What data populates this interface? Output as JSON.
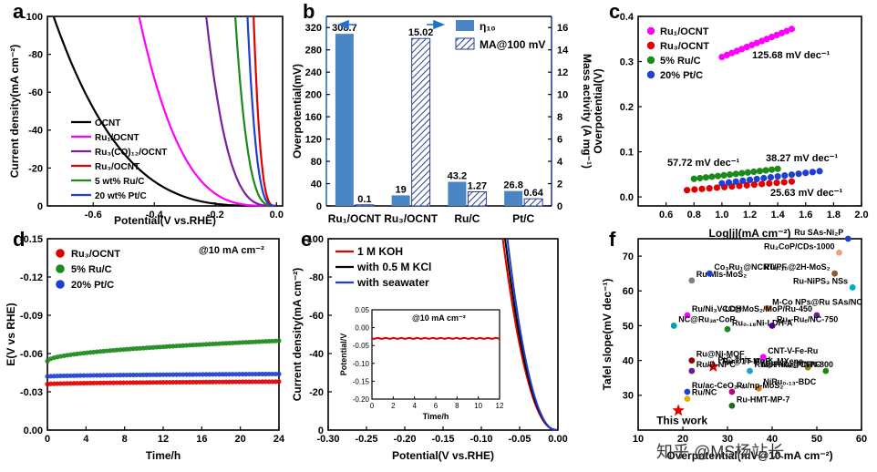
{
  "panels": {
    "a": {
      "letter": "a",
      "chart_data": {
        "type": "line",
        "xlabel": "Potential(V vs.RHE)",
        "ylabel": "Current density(mA cm⁻²)",
        "xlim": [
          -0.75,
          0.02
        ],
        "ylim": [
          -100,
          0
        ],
        "xticks": [
          -0.6,
          -0.4,
          -0.2,
          0.0
        ],
        "yticks": [
          0,
          -20,
          -40,
          -60,
          -80,
          -100
        ],
        "xtick_labels": [
          "-0.6",
          "-0.4",
          "-0.2",
          "0.0"
        ],
        "ytick_labels": [
          "0",
          "-20",
          "-40",
          "-60",
          "-80",
          "-100"
        ],
        "series": [
          {
            "name": "OCNT",
            "color": "#000000",
            "onset": -0.02,
            "end": -0.73
          },
          {
            "name": "Ru₁/OCNT",
            "color": "#ff00ff",
            "onset": -0.01,
            "end": -0.45
          },
          {
            "name": "Ru₃(CO)₁₂/OCNT",
            "color": "#7b1fa2",
            "onset": -0.005,
            "end": -0.23
          },
          {
            "name": "Ru₃/OCNT",
            "color": "#e00000",
            "onset": -0.002,
            "end": -0.075
          },
          {
            "name": "5 wt% Ru/C",
            "color": "#1a8a1a",
            "onset": -0.004,
            "end": -0.135
          },
          {
            "name": "20 wt% Pt/C",
            "color": "#1f3fd0",
            "onset": -0.003,
            "end": -0.095
          }
        ]
      }
    },
    "b": {
      "letter": "b",
      "chart_data": {
        "type": "bar",
        "categories": [
          "Ru₁/OCNT",
          "Ru₃/OCNT",
          "Ru/C",
          "Pt/C"
        ],
        "ylabel": "Overpotential(mV)",
        "ylabel2": "Mass activity (A mg⁻¹)",
        "ylim": [
          0,
          340
        ],
        "ylim2": [
          0,
          17
        ],
        "yticks": [
          0,
          40,
          80,
          120,
          160,
          200,
          240,
          280,
          320
        ],
        "yticks2": [
          0,
          2,
          4,
          6,
          8,
          10,
          12,
          14,
          16
        ],
        "series": [
          {
            "name": "η₁₀",
            "axis": "left",
            "color": "#4a86c5",
            "values": [
              308.7,
              19,
              43.2,
              26.8
            ],
            "labels": [
              "308.7",
              "19",
              "43.2",
              "26.8"
            ]
          },
          {
            "name": "MA@100 mV",
            "axis": "right",
            "color": "#2a3f8f",
            "values": [
              0.1,
              15.02,
              1.27,
              0.64
            ],
            "labels": [
              "0.1",
              "15.02",
              "1.27",
              "0.64"
            ]
          }
        ]
      }
    },
    "c": {
      "letter": "c",
      "chart_data": {
        "type": "scatter",
        "xlabel": "Log|j|(mA cm⁻²)",
        "ylabel": "Overpotential(V)",
        "xlim": [
          0.4,
          2.0
        ],
        "ylim": [
          -0.02,
          0.4
        ],
        "xticks": [
          0.6,
          0.8,
          1.0,
          1.2,
          1.4,
          1.6,
          1.8,
          2.0
        ],
        "yticks": [
          0.0,
          0.1,
          0.2,
          0.3,
          0.4
        ],
        "series": [
          {
            "name": "Ru₁/OCNT",
            "color": "#ff00ff",
            "x": [
              1.0,
              1.5
            ],
            "y": [
              0.31,
              0.372
            ],
            "slope": "125.68 mV dec⁻¹"
          },
          {
            "name": "Ru₃/OCNT",
            "color": "#e00000",
            "x": [
              0.75,
              1.5
            ],
            "y": [
              0.015,
              0.034
            ],
            "slope": "25.63 mV dec⁻¹"
          },
          {
            "name": "5% Ru/C",
            "color": "#1a8a1a",
            "x": [
              0.8,
              1.4
            ],
            "y": [
              0.04,
              0.062
            ],
            "slope": "57.72 mV dec⁻¹"
          },
          {
            "name": "20% Pt/C",
            "color": "#1f3fd0",
            "x": [
              1.0,
              1.7
            ],
            "y": [
              0.03,
              0.057
            ],
            "slope": "38.27 mV dec⁻¹"
          }
        ]
      }
    },
    "d": {
      "letter": "d",
      "annotation": "@10 mA cm⁻²",
      "chart_data": {
        "type": "scatter",
        "xlabel": "Time/h",
        "ylabel": "E(V vs RHE)",
        "xlim": [
          0,
          24
        ],
        "ylim": [
          -0.15,
          0.0
        ],
        "xticks": [
          0,
          4,
          8,
          12,
          16,
          20,
          24
        ],
        "yticks": [
          0.0,
          -0.03,
          -0.06,
          -0.09,
          -0.12,
          -0.15
        ],
        "ytick_labels": [
          "0.00",
          "-0.03",
          "-0.06",
          "-0.09",
          "-0.12",
          "-0.15"
        ],
        "series": [
          {
            "name": "Ru₃/OCNT",
            "color": "#e00000",
            "start": -0.036,
            "end": -0.038
          },
          {
            "name": "5% Ru/C",
            "color": "#1a8a1a",
            "start": -0.054,
            "end": -0.07
          },
          {
            "name": "20% Pt/C",
            "color": "#1f3fd0",
            "start": -0.042,
            "end": -0.044
          }
        ]
      }
    },
    "e": {
      "letter": "e",
      "chart_data": {
        "type": "line",
        "xlabel": "Potential(V vs.RHE)",
        "ylabel": "Current density(mA cm⁻²)",
        "xlim": [
          -0.3,
          0.0
        ],
        "ylim": [
          -100,
          0
        ],
        "xticks": [
          -0.3,
          -0.25,
          -0.2,
          -0.15,
          -0.1,
          -0.05,
          0.0
        ],
        "xtick_labels": [
          "-0.30",
          "-0.25",
          "-0.20",
          "-0.15",
          "-0.10",
          "-0.05",
          "0.00"
        ],
        "yticks": [
          0,
          -20,
          -40,
          -60,
          -80,
          -100
        ],
        "series": [
          {
            "name": "1 M KOH",
            "color": "#e00000",
            "end": -0.072
          },
          {
            "name": "with 0.5 M KCl",
            "color": "#000000",
            "end": -0.069
          },
          {
            "name": "with seawater",
            "color": "#1f3fd0",
            "end": -0.066
          }
        ],
        "inset": {
          "annotation": "@10 mA cm⁻²",
          "xlabel": "Time/h",
          "ylabel": "Potential/V",
          "xlim": [
            0,
            12
          ],
          "ylim": [
            -0.2,
            0.05
          ],
          "xticks": [
            0,
            2,
            4,
            6,
            8,
            10,
            12
          ],
          "yticks": [
            0.05,
            0.0,
            -0.05,
            -0.1,
            -0.15,
            -0.2
          ],
          "ytick_labels": [
            "0.05",
            "0.00",
            "-0.05",
            "-0.10",
            "-0.15",
            "-0.20"
          ],
          "value": -0.03
        }
      }
    },
    "f": {
      "letter": "f",
      "chart_data": {
        "type": "scatter",
        "xlabel": "Overpotential(mV@10 mA cm⁻²)",
        "ylabel": "Tafel slope(mV dec⁻¹)",
        "xlim": [
          10,
          60
        ],
        "ylim": [
          20,
          75
        ],
        "xticks": [
          10,
          20,
          30,
          40,
          50,
          60
        ],
        "yticks": [
          30,
          40,
          50,
          60,
          70
        ],
        "points": [
          {
            "label": "This work",
            "x": 19,
            "y": 25.63,
            "color": "#e00000",
            "star": true
          },
          {
            "label": "PtC-This work",
            "x": 26.8,
            "y": 38.27,
            "color": "#e00000",
            "star": true
          },
          {
            "label": "Ru SAs-Ni₂P",
            "x": 57,
            "y": 75,
            "color": "#1f3fd0"
          },
          {
            "label": "Ru₂CoP/CDs-1000",
            "x": 55,
            "y": 71,
            "color": "#f0a080"
          },
          {
            "label": "Ru Mls-MoS₂",
            "x": 22,
            "y": 63,
            "color": "#808080"
          },
          {
            "label": "Co₃Ru₁@NCNT/PF",
            "x": 26,
            "y": 65,
            "color": "#1f3fd0"
          },
          {
            "label": "Ru₀.₁₀@2H-MoS₂",
            "x": 54,
            "y": 65,
            "color": "#8b5a2b"
          },
          {
            "label": "Ru-NiPS₃ NSs",
            "x": 58,
            "y": 61,
            "color": "#00b0c0"
          },
          {
            "label": "Ru/Ni₃V-LDH",
            "x": 21,
            "y": 53,
            "color": "#ff00ff"
          },
          {
            "label": "M-Co NPs@Ru SAs/NC",
            "x": 39,
            "y": 55,
            "color": "#e07a10"
          },
          {
            "label": "CC@MoS₂/MoP/Ru-450",
            "x": 50,
            "y": 53,
            "color": "#6a1b9a"
          },
          {
            "label": "NC@Ru₃ₐ-CoP",
            "x": 18,
            "y": 50,
            "color": "#00a0b0"
          },
          {
            "label": "Ru₀.₁₈Ni-LDH-A",
            "x": 30,
            "y": 49,
            "color": "#1a8a1a"
          },
          {
            "label": "Ruₑ-Ruₑ/NC-750",
            "x": 40,
            "y": 50,
            "color": "#4b0082"
          },
          {
            "label": "Ru@Ni-MOF",
            "x": 22,
            "y": 40,
            "color": "#8b0000"
          },
          {
            "label": "CNT-V-Fe-Ru",
            "x": 38,
            "y": 41,
            "color": "#ff00ff"
          },
          {
            "label": "Ru@1T-MoS₂-MXene",
            "x": 48,
            "y": 38,
            "color": "#8b8b00"
          },
          {
            "label": "Ru/D-NPC",
            "x": 22,
            "y": 37,
            "color": "#6a1b9a"
          },
          {
            "label": "Ruₙₚ-Ruₛₐ@CFN-800",
            "x": 35,
            "y": 37,
            "color": "#1f9fd0"
          },
          {
            "label": "MoP-Ru₂P/NPC",
            "x": 52,
            "y": 37,
            "color": "#1a8a1a"
          },
          {
            "label": "Ru/ac-CeO₂₋ₓ",
            "x": 21,
            "y": 31,
            "color": "#1f3fd0"
          },
          {
            "label": "NiRu₀.₁₃-BDC",
            "x": 37,
            "y": 32,
            "color": "#e07a10"
          },
          {
            "label": "Ru/np-MoS₂",
            "x": 31,
            "y": 31,
            "color": "#c0007a"
          },
          {
            "label": "Ru/NC",
            "x": 21,
            "y": 29,
            "color": "#e0b000"
          },
          {
            "label": "Ru-HMT-MP-7",
            "x": 31,
            "y": 27,
            "color": "#1a6a1a"
          }
        ]
      }
    }
  },
  "watermark": "知乎 @MS杨站长"
}
